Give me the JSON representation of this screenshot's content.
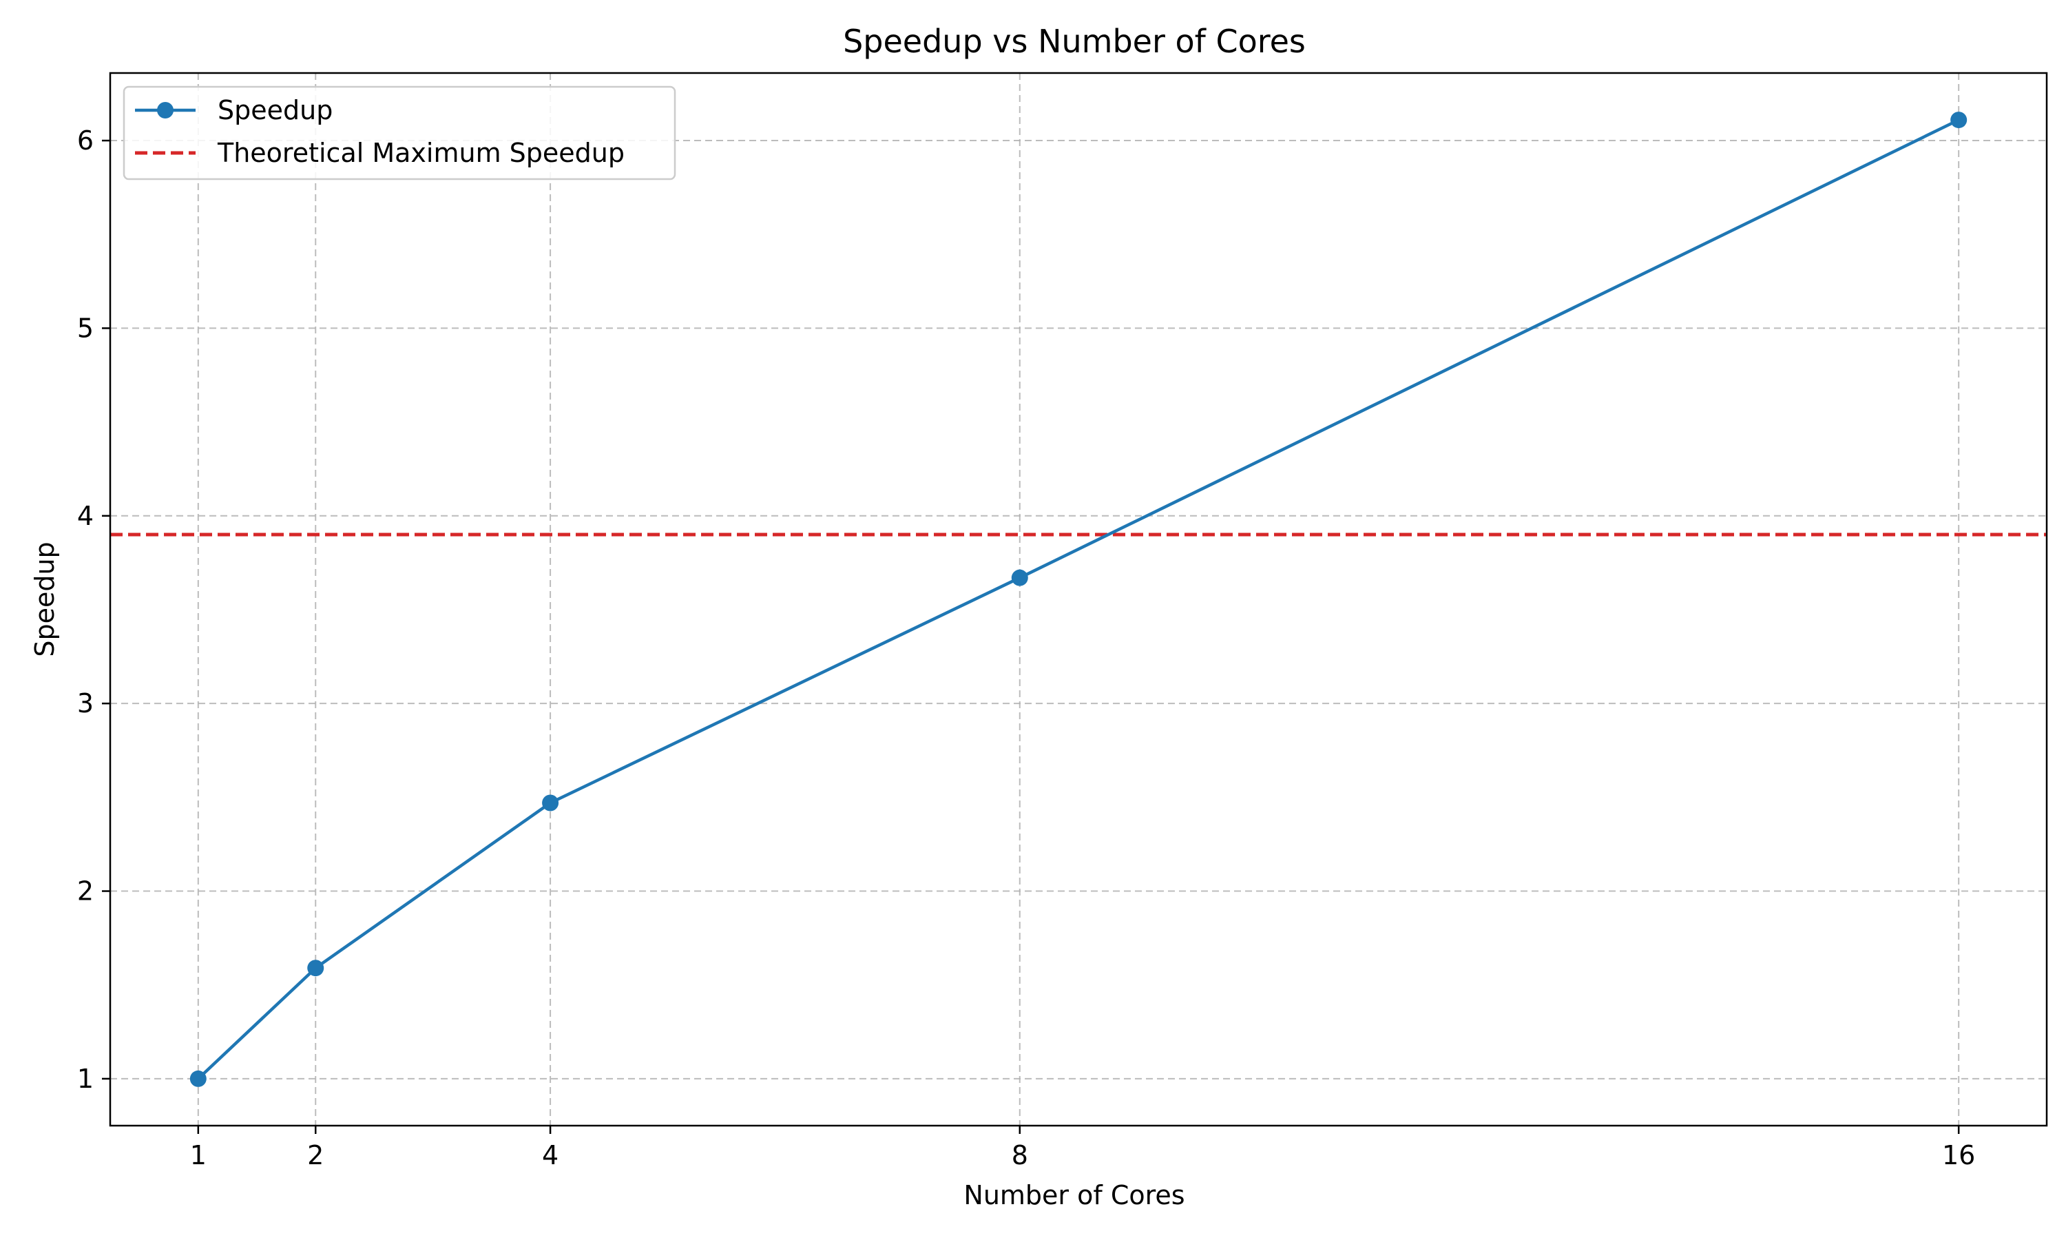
{
  "chart_data": {
    "type": "line",
    "title": "Speedup vs Number of Cores",
    "xlabel": "Number of Cores",
    "ylabel": "Speedup",
    "x_ticks": [
      1,
      2,
      4,
      8,
      16
    ],
    "y_ticks": [
      1,
      2,
      3,
      4,
      5,
      6
    ],
    "xlim": [
      0.25,
      16.75
    ],
    "ylim": [
      0.75,
      6.36
    ],
    "grid": true,
    "legend_position": "top-left",
    "series": [
      {
        "name": "Speedup",
        "x": [
          1,
          2,
          4,
          8,
          16
        ],
        "values": [
          1.0,
          1.59,
          2.47,
          3.67,
          6.11
        ],
        "color": "#1f77b4",
        "marker": "circle"
      }
    ],
    "reference_lines": [
      {
        "name": "Theoretical Maximum Speedup",
        "y": 3.9,
        "color": "#d62728",
        "style": "dashed"
      }
    ]
  }
}
